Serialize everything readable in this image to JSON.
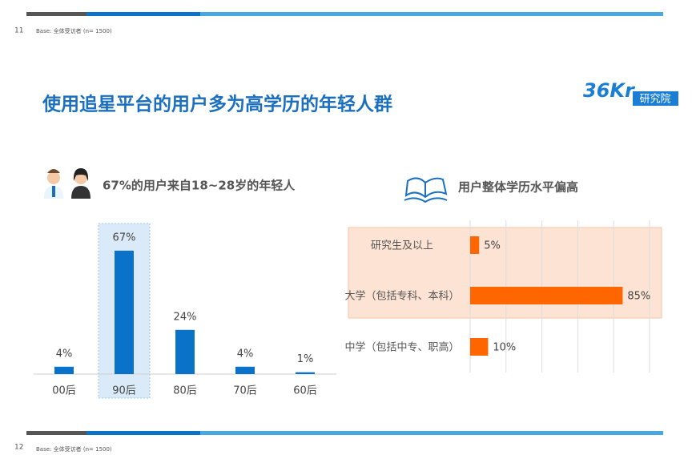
{
  "header": {
    "page_number": "11",
    "base": "Base: 全体受访者 (n= 1500)",
    "title": "使用追星平台的用户多为高学历的年轻人群",
    "logo": "36Kr",
    "logo_tag": "研究院"
  },
  "footer": {
    "page_number": "12",
    "base": "Base: 全体受访者 (n= 1500)"
  },
  "chart_data": [
    {
      "type": "bar",
      "title": "67%的用户来自18~28岁的年轻人",
      "categories": [
        "00后",
        "90后",
        "80后",
        "70后",
        "60后"
      ],
      "values": [
        4,
        67,
        24,
        4,
        1
      ],
      "value_labels": [
        "4%",
        "67%",
        "24%",
        "4%",
        "1%"
      ],
      "color": "#0b72c9",
      "highlight_index": 1
    },
    {
      "type": "hbar",
      "title": "用户整体学历水平偏高",
      "categories": [
        "研究生及以上",
        "大学（包括专科、本科）",
        "中学（包括中专、职高）"
      ],
      "values": [
        5,
        85,
        10
      ],
      "value_labels": [
        "5%",
        "85%",
        "10%"
      ],
      "color": "#ff6600",
      "xlim": [
        0,
        100
      ],
      "xgrid": [
        0,
        20,
        40,
        60,
        80,
        100
      ],
      "highlight_rows": [
        0,
        1
      ]
    }
  ]
}
